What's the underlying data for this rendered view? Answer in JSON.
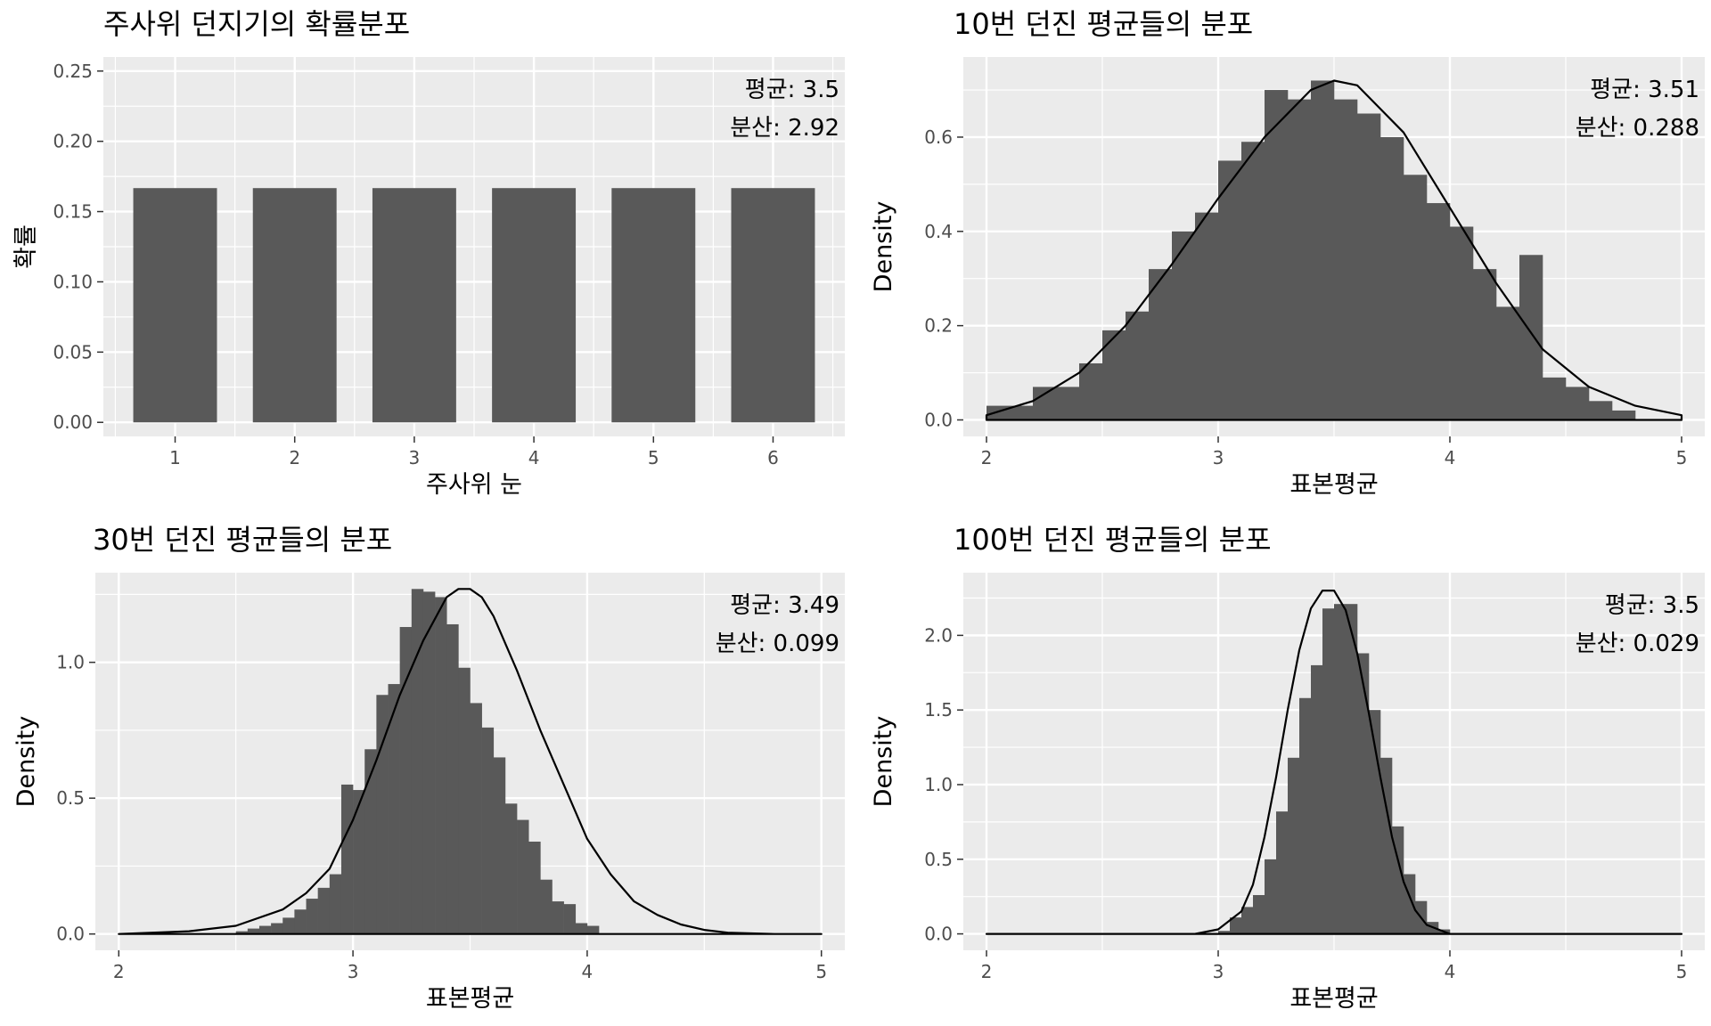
{
  "colors": {
    "panel_bg": "#ebebeb",
    "grid_major": "#ffffff",
    "bar_fill": "#595959",
    "density_line": "#000000"
  },
  "chart_data": [
    {
      "type": "bar",
      "title": "주사위 던지기의 확률분포",
      "xlabel": "주사위 눈",
      "ylabel": "확률",
      "categories": [
        "1",
        "2",
        "3",
        "4",
        "5",
        "6"
      ],
      "values": [
        0.1667,
        0.1667,
        0.1667,
        0.1667,
        0.1667,
        0.1667
      ],
      "ylim": [
        -0.01,
        0.26
      ],
      "yticks": [
        "0.00",
        "0.05",
        "0.10",
        "0.15",
        "0.20",
        "0.25"
      ],
      "annotation": [
        "평균: 3.5",
        "분산: 2.92"
      ],
      "grid": true
    },
    {
      "type": "bar",
      "title": "10번 던진 평균들의 분포",
      "xlabel": "표본평균",
      "ylabel": "Density",
      "xlim": [
        1.9,
        5.1
      ],
      "ylim": [
        -0.035,
        0.77
      ],
      "xticks": [
        "2",
        "3",
        "4",
        "5"
      ],
      "yticks": [
        "0.0",
        "0.2",
        "0.4",
        "0.6"
      ],
      "bin_width": 0.1,
      "bins_start": 2.0,
      "values": [
        0.03,
        0.03,
        0.07,
        0.07,
        0.12,
        0.19,
        0.23,
        0.32,
        0.4,
        0.44,
        0.55,
        0.59,
        0.7,
        0.68,
        0.72,
        0.68,
        0.65,
        0.6,
        0.52,
        0.46,
        0.41,
        0.32,
        0.24,
        0.35,
        0.09,
        0.07,
        0.04,
        0.02
      ],
      "density_x": [
        2.0,
        2.2,
        2.4,
        2.6,
        2.8,
        3.0,
        3.2,
        3.4,
        3.5,
        3.6,
        3.8,
        4.0,
        4.2,
        4.4,
        4.6,
        4.8,
        5.0
      ],
      "density_y": [
        0.01,
        0.04,
        0.1,
        0.2,
        0.33,
        0.47,
        0.6,
        0.7,
        0.72,
        0.71,
        0.61,
        0.45,
        0.29,
        0.15,
        0.07,
        0.03,
        0.01
      ],
      "annotation": [
        "평균: 3.51",
        "분산: 0.288"
      ],
      "grid": true
    },
    {
      "type": "bar",
      "title": "30번 던진 평균들의 분포",
      "xlabel": "표본평균",
      "ylabel": "Density",
      "xlim": [
        1.9,
        5.1
      ],
      "ylim": [
        -0.06,
        1.33
      ],
      "xticks": [
        "2",
        "3",
        "4",
        "5"
      ],
      "yticks": [
        "0.0",
        "0.5",
        "1.0"
      ],
      "bin_width": 0.05,
      "bins_start": 2.5,
      "values": [
        0.01,
        0.02,
        0.03,
        0.04,
        0.06,
        0.09,
        0.13,
        0.17,
        0.22,
        0.55,
        0.53,
        0.68,
        0.88,
        0.92,
        1.13,
        1.27,
        1.26,
        1.24,
        1.14,
        0.98,
        0.85,
        0.76,
        0.65,
        0.48,
        0.42,
        0.34,
        0.2,
        0.12,
        0.11,
        0.04,
        0.03
      ],
      "density_x": [
        2.0,
        2.3,
        2.5,
        2.7,
        2.8,
        2.9,
        3.0,
        3.1,
        3.2,
        3.3,
        3.4,
        3.45,
        3.5,
        3.55,
        3.6,
        3.7,
        3.8,
        3.9,
        4.0,
        4.1,
        4.2,
        4.3,
        4.4,
        4.5,
        4.6,
        4.8,
        5.0
      ],
      "density_y": [
        0.0,
        0.01,
        0.03,
        0.09,
        0.15,
        0.24,
        0.42,
        0.64,
        0.88,
        1.08,
        1.24,
        1.27,
        1.27,
        1.24,
        1.17,
        0.97,
        0.75,
        0.55,
        0.35,
        0.22,
        0.12,
        0.07,
        0.035,
        0.015,
        0.005,
        0.0,
        0.0
      ],
      "annotation": [
        "평균: 3.49",
        "분산: 0.099"
      ],
      "grid": true
    },
    {
      "type": "bar",
      "title": "100번 던진 평균들의 분포",
      "xlabel": "표본평균",
      "ylabel": "Density",
      "xlim": [
        1.9,
        5.1
      ],
      "ylim": [
        -0.11,
        2.42
      ],
      "xticks": [
        "2",
        "3",
        "4",
        "5"
      ],
      "yticks": [
        "0.0",
        "0.5",
        "1.0",
        "1.5",
        "2.0"
      ],
      "bin_width": 0.05,
      "bins_start": 3.0,
      "values": [
        0.02,
        0.11,
        0.18,
        0.26,
        0.5,
        0.82,
        1.18,
        1.58,
        1.8,
        2.18,
        2.21,
        2.21,
        1.88,
        1.5,
        1.18,
        0.72,
        0.4,
        0.22,
        0.08,
        0.03
      ],
      "density_x": [
        2.0,
        2.9,
        3.0,
        3.1,
        3.15,
        3.2,
        3.25,
        3.3,
        3.35,
        3.4,
        3.45,
        3.5,
        3.55,
        3.6,
        3.65,
        3.7,
        3.75,
        3.8,
        3.85,
        3.9,
        4.0,
        5.0
      ],
      "density_y": [
        0.0,
        0.0,
        0.03,
        0.15,
        0.33,
        0.65,
        1.05,
        1.5,
        1.9,
        2.18,
        2.3,
        2.3,
        2.17,
        1.88,
        1.48,
        1.05,
        0.65,
        0.35,
        0.16,
        0.06,
        0.0,
        0.0
      ],
      "annotation": [
        "평균: 3.5",
        "분산: 0.029"
      ],
      "grid": true
    }
  ]
}
